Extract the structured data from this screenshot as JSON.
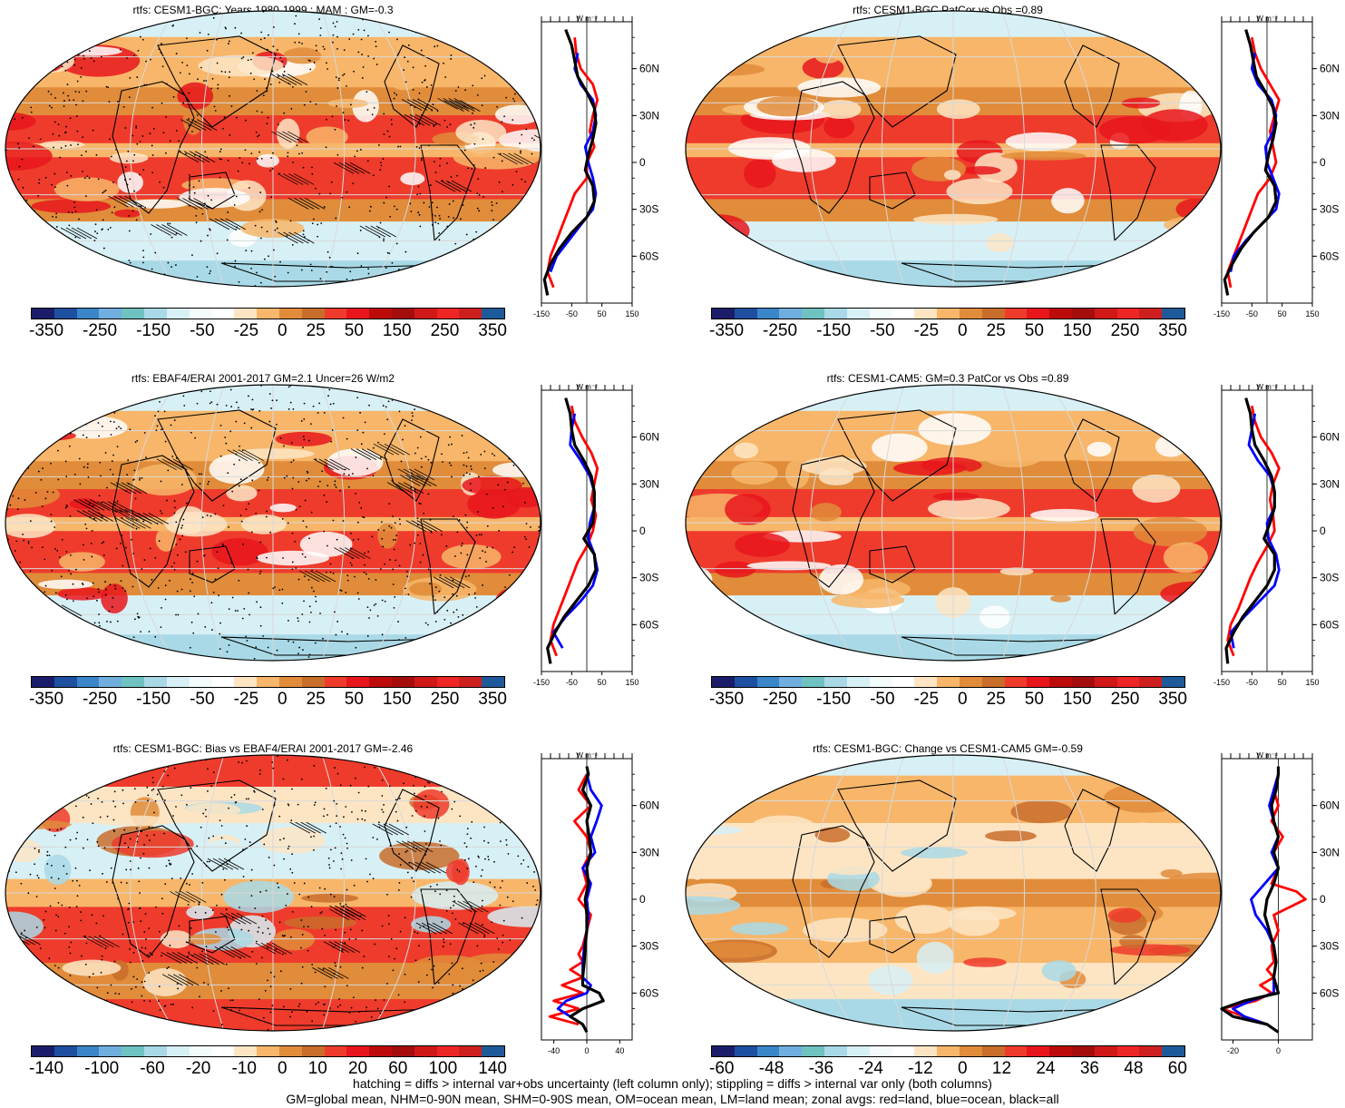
{
  "panels": [
    {
      "title": "rtfs: CESM1-BGC: Years 1980-1999 : MAM : GM=-0.3",
      "colorbar_labels": [
        "-350",
        "-250",
        "-150",
        "-50",
        "-25",
        "0",
        "25",
        "50",
        "150",
        "250",
        "350"
      ],
      "zonal_ticks": [
        "-150",
        "-50",
        "50",
        "150"
      ],
      "zonal_unit": "W m⁻²",
      "lat_labels": [
        "60N",
        "30N",
        "0",
        "30S",
        "60S"
      ],
      "hatching": true,
      "stippling": true
    },
    {
      "title": "rtfs: CESM1-BGC PatCor vs Obs =0.89",
      "colorbar_labels": [
        "-350",
        "-250",
        "-150",
        "-50",
        "-25",
        "0",
        "25",
        "50",
        "150",
        "250",
        "350"
      ],
      "zonal_ticks": [
        "-150",
        "-50",
        "50",
        "150"
      ],
      "zonal_unit": "W m⁻²",
      "lat_labels": [
        "60N",
        "30N",
        "0",
        "30S",
        "60S"
      ],
      "hatching": false,
      "stippling": false
    },
    {
      "title": "rtfs: EBAF4/ERAI 2001-2017 GM=2.1 Uncer=26 W/m2",
      "colorbar_labels": [
        "-350",
        "-250",
        "-150",
        "-50",
        "-25",
        "0",
        "25",
        "50",
        "150",
        "250",
        "350"
      ],
      "zonal_ticks": [
        "-150",
        "-50",
        "50",
        "150"
      ],
      "zonal_unit": "W m⁻²",
      "lat_labels": [
        "60N",
        "30N",
        "0",
        "30S",
        "60S"
      ],
      "hatching": true,
      "stippling": true
    },
    {
      "title": "rtfs: CESM1-CAM5: GM=0.3 PatCor vs Obs =0.89",
      "colorbar_labels": [
        "-350",
        "-250",
        "-150",
        "-50",
        "-25",
        "0",
        "25",
        "50",
        "150",
        "250",
        "350"
      ],
      "zonal_ticks": [
        "-150",
        "-50",
        "50",
        "150"
      ],
      "zonal_unit": "W m⁻²",
      "lat_labels": [
        "60N",
        "30N",
        "0",
        "30S",
        "60S"
      ],
      "hatching": false,
      "stippling": false
    },
    {
      "title": "rtfs: CESM1-BGC: Bias vs EBAF4/ERAI 2001-2017 GM=-2.46",
      "colorbar_labels": [
        "-140",
        "-100",
        "-60",
        "-20",
        "-10",
        "0",
        "10",
        "20",
        "60",
        "100",
        "140"
      ],
      "zonal_ticks": [
        "-40",
        "0",
        "40"
      ],
      "zonal_unit": "W m⁻²",
      "lat_labels": [
        "60N",
        "30N",
        "0",
        "30S",
        "60S"
      ],
      "hatching": true,
      "stippling": true
    },
    {
      "title": "rtfs: CESM1-BGC: Change vs CESM1-CAM5 GM=-0.59",
      "colorbar_labels": [
        "-60",
        "-48",
        "-36",
        "-24",
        "-12",
        "0",
        "12",
        "24",
        "36",
        "48",
        "60"
      ],
      "zonal_ticks": [
        "-20",
        "0"
      ],
      "zonal_unit": "W m⁻²",
      "lat_labels": [
        "60N",
        "30N",
        "0",
        "30S",
        "60S"
      ],
      "hatching": false,
      "stippling": false
    }
  ],
  "colorbar_colors": [
    "#1b1d6b",
    "#1f4fa0",
    "#3b86c8",
    "#70aedf",
    "#6ec2c0",
    "#a9d9e6",
    "#d7f0f6",
    "#f3fbfd",
    "#ffffff",
    "#fde5c4",
    "#f7b66a",
    "#e08c3a",
    "#c96d2b",
    "#ef3b2c",
    "#e8161c",
    "#bd0b0b",
    "#a50d0d",
    "#d01818",
    "#ee2525",
    "#ce1f1f",
    "#1e5a99"
  ],
  "chart_data": [
    {
      "type": "heatmap",
      "title": "rtfs: CESM1-BGC: Years 1980-1999 : MAM : GM=-0.3",
      "zonal_x_range": [
        -150,
        150
      ],
      "zonal_lat_range": [
        -90,
        90
      ],
      "zonal_series": [
        {
          "name": "land",
          "color": "red",
          "lat": [
            -80,
            -70,
            -60,
            -50,
            -40,
            -30,
            -20,
            -10,
            0,
            10,
            20,
            30,
            40,
            50,
            60,
            70,
            80
          ],
          "values": [
            -110,
            -130,
            -120,
            -100,
            -80,
            -60,
            -40,
            0,
            0,
            25,
            10,
            20,
            35,
            20,
            -20,
            -35,
            -40
          ]
        },
        {
          "name": "ocean",
          "color": "blue",
          "lat": [
            -70,
            -60,
            -50,
            -40,
            -30,
            -20,
            -10,
            0,
            10,
            20,
            30,
            40,
            50,
            60,
            70
          ],
          "values": [
            -120,
            -100,
            -60,
            -20,
            20,
            30,
            20,
            5,
            -5,
            20,
            30,
            20,
            -20,
            -40,
            -30
          ]
        },
        {
          "name": "all",
          "color": "black",
          "lat": [
            -85,
            -75,
            -65,
            -55,
            -45,
            -35,
            -25,
            -15,
            -5,
            5,
            15,
            25,
            35,
            45,
            55,
            65,
            75,
            85
          ],
          "values": [
            -130,
            -140,
            -120,
            -90,
            -50,
            0,
            25,
            20,
            -5,
            5,
            20,
            30,
            25,
            0,
            -30,
            -40,
            -50,
            -70
          ]
        }
      ]
    },
    {
      "type": "heatmap",
      "title": "rtfs: CESM1-BGC PatCor vs Obs =0.89",
      "zonal_x_range": [
        -150,
        150
      ],
      "zonal_lat_range": [
        -90,
        90
      ],
      "zonal_series": [
        {
          "name": "land",
          "color": "red",
          "lat": [
            -80,
            -70,
            -60,
            -50,
            -40,
            -30,
            -20,
            -10,
            0,
            10,
            20,
            30,
            40,
            50,
            60,
            70,
            80
          ],
          "values": [
            -120,
            -130,
            -110,
            -90,
            -70,
            -50,
            -30,
            10,
            30,
            20,
            10,
            25,
            40,
            10,
            -20,
            -40,
            -50
          ]
        },
        {
          "name": "ocean",
          "color": "blue",
          "lat": [
            -70,
            -60,
            -50,
            -40,
            -30,
            -20,
            -10,
            0,
            10,
            20,
            30,
            40,
            50,
            60,
            70
          ],
          "values": [
            -120,
            -110,
            -70,
            -20,
            30,
            40,
            20,
            0,
            -5,
            20,
            30,
            15,
            -30,
            -50,
            -40
          ]
        },
        {
          "name": "all",
          "color": "black",
          "lat": [
            -85,
            -75,
            -65,
            -55,
            -45,
            -35,
            -25,
            -15,
            -5,
            5,
            15,
            25,
            35,
            45,
            55,
            65,
            75,
            85
          ],
          "values": [
            -130,
            -140,
            -115,
            -85,
            -45,
            5,
            30,
            25,
            -5,
            5,
            20,
            30,
            20,
            -5,
            -35,
            -45,
            -55,
            -70
          ]
        }
      ]
    },
    {
      "type": "heatmap",
      "title": "rtfs: EBAF4/ERAI 2001-2017 GM=2.1 Uncer=26 W/m2",
      "zonal_x_range": [
        -150,
        150
      ],
      "zonal_lat_range": [
        -90,
        90
      ],
      "zonal_series": [
        {
          "name": "land",
          "color": "red",
          "lat": [
            -80,
            -70,
            -60,
            -50,
            -40,
            -30,
            -20,
            -10,
            0,
            10,
            20,
            30,
            40,
            50,
            60,
            70,
            80
          ],
          "values": [
            -100,
            -120,
            -110,
            -90,
            -70,
            -50,
            -30,
            0,
            20,
            30,
            15,
            25,
            35,
            15,
            -15,
            -40,
            -50
          ]
        },
        {
          "name": "ocean",
          "color": "blue",
          "lat": [
            -75,
            -65,
            -55,
            -45,
            -35,
            -25,
            -15,
            -5,
            5,
            15,
            25,
            35,
            45,
            55,
            65,
            75
          ],
          "values": [
            -80,
            -110,
            -70,
            -20,
            20,
            35,
            25,
            5,
            10,
            25,
            25,
            10,
            -20,
            -55,
            -50,
            -40
          ]
        },
        {
          "name": "all",
          "color": "black",
          "lat": [
            -85,
            -75,
            -65,
            -55,
            -45,
            -35,
            -25,
            -15,
            -5,
            5,
            15,
            25,
            35,
            45,
            55,
            65,
            75,
            85
          ],
          "values": [
            -120,
            -130,
            -105,
            -75,
            -35,
            5,
            30,
            25,
            -10,
            20,
            25,
            25,
            15,
            -10,
            -40,
            -50,
            -55,
            -70
          ]
        }
      ]
    },
    {
      "type": "heatmap",
      "title": "rtfs: CESM1-CAM5: GM=0.3 PatCor vs Obs =0.89",
      "zonal_x_range": [
        -150,
        150
      ],
      "zonal_lat_range": [
        -90,
        90
      ],
      "zonal_series": [
        {
          "name": "land",
          "color": "red",
          "lat": [
            -80,
            -70,
            -60,
            -50,
            -40,
            -30,
            -20,
            -10,
            0,
            10,
            20,
            30,
            40,
            50,
            60,
            70,
            80
          ],
          "values": [
            -110,
            -130,
            -120,
            -95,
            -75,
            -55,
            -30,
            0,
            25,
            20,
            10,
            20,
            40,
            15,
            -20,
            -40,
            -50
          ]
        },
        {
          "name": "ocean",
          "color": "blue",
          "lat": [
            -75,
            -65,
            -55,
            -45,
            -35,
            -25,
            -15,
            -5,
            5,
            15,
            25,
            35,
            45,
            55,
            65,
            75
          ],
          "values": [
            -110,
            -120,
            -75,
            -25,
            25,
            40,
            30,
            5,
            0,
            25,
            25,
            10,
            -30,
            -60,
            -50,
            -40
          ]
        },
        {
          "name": "all",
          "color": "black",
          "lat": [
            -85,
            -75,
            -65,
            -55,
            -45,
            -35,
            -25,
            -15,
            -5,
            5,
            15,
            25,
            35,
            45,
            55,
            65,
            75,
            85
          ],
          "values": [
            -130,
            -135,
            -110,
            -80,
            -40,
            0,
            25,
            25,
            -10,
            10,
            25,
            25,
            15,
            -10,
            -40,
            -50,
            -55,
            -70
          ]
        }
      ]
    },
    {
      "type": "heatmap",
      "title": "rtfs: CESM1-BGC: Bias vs EBAF4/ERAI 2001-2017 GM=-2.46",
      "zonal_x_range": [
        -55,
        55
      ],
      "zonal_lat_range": [
        -90,
        90
      ],
      "zonal_series": [
        {
          "name": "land",
          "color": "red",
          "lat": [
            -80,
            -75,
            -70,
            -65,
            -60,
            -55,
            -50,
            -45,
            -40,
            -35,
            -30,
            -20,
            -10,
            0,
            10,
            20,
            30,
            40,
            50,
            60,
            70,
            80
          ],
          "values": [
            -10,
            -45,
            -10,
            -40,
            -5,
            -30,
            -5,
            -20,
            -5,
            -10,
            -5,
            0,
            5,
            -10,
            0,
            -5,
            5,
            0,
            -15,
            5,
            -10,
            0
          ]
        },
        {
          "name": "ocean",
          "color": "blue",
          "lat": [
            -80,
            -75,
            -70,
            -65,
            -60,
            -55,
            -50,
            -40,
            -30,
            -20,
            -10,
            0,
            10,
            20,
            30,
            40,
            50,
            60,
            70,
            80
          ],
          "values": [
            -5,
            -20,
            -35,
            -25,
            0,
            5,
            -5,
            -5,
            -3,
            0,
            2,
            0,
            5,
            -5,
            10,
            5,
            12,
            18,
            5,
            0
          ]
        },
        {
          "name": "all",
          "color": "black",
          "lat": [
            -85,
            -80,
            -75,
            -70,
            -65,
            -60,
            -55,
            -50,
            -40,
            -30,
            -20,
            -10,
            0,
            10,
            20,
            30,
            40,
            50,
            60,
            70,
            80,
            85
          ],
          "values": [
            0,
            -5,
            -20,
            -5,
            20,
            15,
            -5,
            -5,
            -3,
            -2,
            0,
            0,
            -2,
            2,
            0,
            5,
            3,
            0,
            5,
            -5,
            2,
            0
          ]
        }
      ]
    },
    {
      "type": "heatmap",
      "title": "rtfs: CESM1-BGC: Change vs CESM1-CAM5 GM=-0.59",
      "zonal_x_range": [
        -25,
        15
      ],
      "zonal_lat_range": [
        -90,
        90
      ],
      "zonal_series": [
        {
          "name": "land",
          "color": "red",
          "lat": [
            -80,
            -75,
            -70,
            -65,
            -60,
            -55,
            -50,
            -45,
            -40,
            -30,
            -20,
            -10,
            0,
            5,
            10,
            20,
            30,
            40,
            50,
            60,
            70,
            80
          ],
          "values": [
            -5,
            -15,
            -25,
            -10,
            -3,
            -8,
            -2,
            -5,
            -2,
            -3,
            0,
            -2,
            12,
            8,
            -3,
            0,
            -2,
            2,
            -3,
            0,
            -2,
            0
          ]
        },
        {
          "name": "ocean",
          "color": "blue",
          "lat": [
            -80,
            -75,
            -70,
            -65,
            -60,
            -50,
            -40,
            -30,
            -20,
            -10,
            0,
            10,
            20,
            30,
            40,
            50,
            60,
            70,
            80
          ],
          "values": [
            -5,
            -15,
            -20,
            -12,
            -2,
            -2,
            -1,
            -2,
            -5,
            -10,
            -12,
            -6,
            0,
            -3,
            0,
            -2,
            -4,
            -2,
            0
          ]
        },
        {
          "name": "all",
          "color": "black",
          "lat": [
            -85,
            -80,
            -75,
            -70,
            -65,
            -60,
            -50,
            -40,
            -30,
            -20,
            -10,
            0,
            10,
            20,
            30,
            40,
            50,
            60,
            70,
            80,
            85
          ],
          "values": [
            0,
            -5,
            -20,
            -25,
            -15,
            0,
            -2,
            -1,
            -2,
            -4,
            -6,
            -5,
            -2,
            0,
            -2,
            0,
            -2,
            -3,
            -1,
            0,
            0
          ]
        }
      ]
    }
  ],
  "footer": {
    "line1": "hatching = diffs > internal var+obs uncertainty (left column only); stippling = diffs > internal var only (both columns)",
    "line2": "GM=global mean, NHM=0-90N mean, SHM=0-90S mean, OM=ocean mean, LM=land mean; zonal avgs: red=land, blue=ocean, black=all"
  }
}
